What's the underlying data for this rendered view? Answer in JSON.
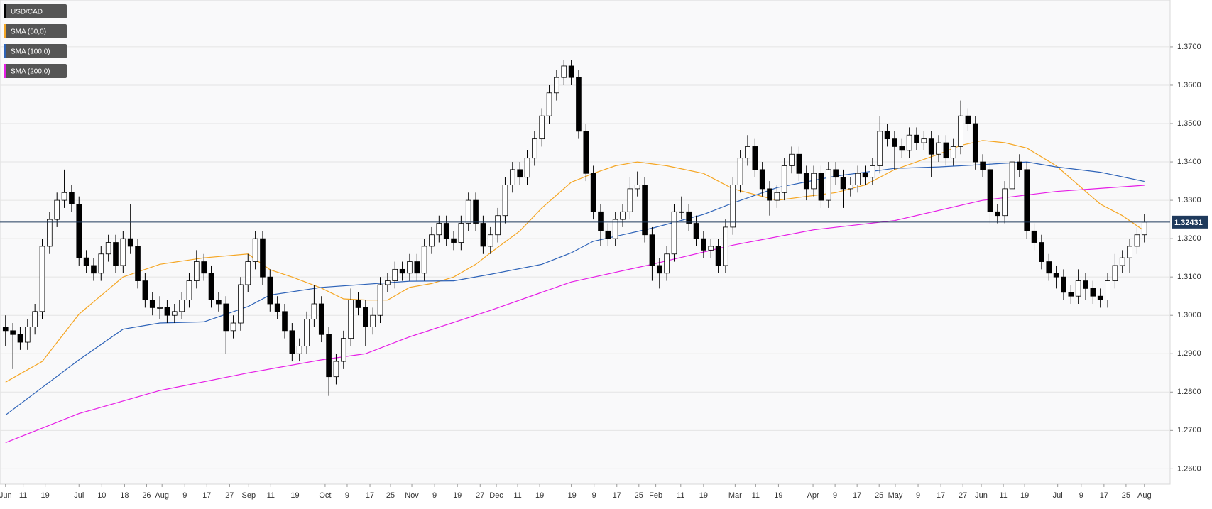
{
  "chart_data": {
    "type": "candlestick",
    "name": "USD/CAD",
    "color": "#000000",
    "ohlc": [
      [
        1.297,
        1.3,
        1.292,
        1.296
      ],
      [
        1.296,
        1.298,
        1.286,
        1.295
      ],
      [
        1.295,
        1.297,
        1.291,
        1.293
      ],
      [
        1.293,
        1.299,
        1.291,
        1.297
      ],
      [
        1.297,
        1.303,
        1.295,
        1.301
      ],
      [
        1.301,
        1.32,
        1.299,
        1.318
      ],
      [
        1.318,
        1.327,
        1.316,
        1.325
      ],
      [
        1.325,
        1.332,
        1.323,
        1.33
      ],
      [
        1.33,
        1.338,
        1.328,
        1.332
      ],
      [
        1.332,
        1.334,
        1.327,
        1.329
      ],
      [
        1.329,
        1.331,
        1.313,
        1.315
      ],
      [
        1.315,
        1.317,
        1.311,
        1.313
      ],
      [
        1.313,
        1.315,
        1.309,
        1.311
      ],
      [
        1.311,
        1.318,
        1.309,
        1.316
      ],
      [
        1.316,
        1.321,
        1.314,
        1.319
      ],
      [
        1.319,
        1.321,
        1.311,
        1.313
      ],
      [
        1.313,
        1.322,
        1.311,
        1.32
      ],
      [
        1.32,
        1.329,
        1.316,
        1.318
      ],
      [
        1.318,
        1.32,
        1.307,
        1.309
      ],
      [
        1.309,
        1.311,
        1.302,
        1.304
      ],
      [
        1.304,
        1.306,
        1.3,
        1.302
      ],
      [
        1.302,
        1.305,
        1.299,
        1.302
      ],
      [
        1.302,
        1.304,
        1.298,
        1.3
      ],
      [
        1.3,
        1.303,
        1.298,
        1.301
      ],
      [
        1.301,
        1.306,
        1.299,
        1.304
      ],
      [
        1.304,
        1.311,
        1.302,
        1.309
      ],
      [
        1.309,
        1.317,
        1.307,
        1.314
      ],
      [
        1.314,
        1.316,
        1.309,
        1.311
      ],
      [
        1.311,
        1.313,
        1.302,
        1.304
      ],
      [
        1.304,
        1.306,
        1.301,
        1.303
      ],
      [
        1.303,
        1.305,
        1.29,
        1.296
      ],
      [
        1.296,
        1.3,
        1.294,
        1.298
      ],
      [
        1.298,
        1.31,
        1.296,
        1.308
      ],
      [
        1.308,
        1.316,
        1.306,
        1.314
      ],
      [
        1.314,
        1.322,
        1.312,
        1.32
      ],
      [
        1.32,
        1.322,
        1.308,
        1.31
      ],
      [
        1.31,
        1.312,
        1.301,
        1.303
      ],
      [
        1.303,
        1.305,
        1.299,
        1.301
      ],
      [
        1.301,
        1.303,
        1.294,
        1.296
      ],
      [
        1.296,
        1.298,
        1.288,
        1.29
      ],
      [
        1.29,
        1.294,
        1.288,
        1.292
      ],
      [
        1.292,
        1.301,
        1.29,
        1.299
      ],
      [
        1.299,
        1.308,
        1.297,
        1.303
      ],
      [
        1.303,
        1.305,
        1.293,
        1.295
      ],
      [
        1.295,
        1.297,
        1.279,
        1.284
      ],
      [
        1.284,
        1.29,
        1.282,
        1.288
      ],
      [
        1.288,
        1.296,
        1.286,
        1.294
      ],
      [
        1.294,
        1.307,
        1.292,
        1.304
      ],
      [
        1.304,
        1.306,
        1.3,
        1.302
      ],
      [
        1.302,
        1.304,
        1.292,
        1.297
      ],
      [
        1.297,
        1.302,
        1.295,
        1.3
      ],
      [
        1.3,
        1.31,
        1.298,
        1.308
      ],
      [
        1.308,
        1.311,
        1.306,
        1.309
      ],
      [
        1.309,
        1.314,
        1.307,
        1.312
      ],
      [
        1.312,
        1.314,
        1.309,
        1.311
      ],
      [
        1.311,
        1.316,
        1.309,
        1.314
      ],
      [
        1.314,
        1.316,
        1.309,
        1.311
      ],
      [
        1.311,
        1.32,
        1.309,
        1.318
      ],
      [
        1.318,
        1.323,
        1.316,
        1.321
      ],
      [
        1.321,
        1.326,
        1.319,
        1.324
      ],
      [
        1.324,
        1.326,
        1.318,
        1.32
      ],
      [
        1.32,
        1.322,
        1.317,
        1.319
      ],
      [
        1.319,
        1.326,
        1.317,
        1.324
      ],
      [
        1.324,
        1.332,
        1.322,
        1.33
      ],
      [
        1.33,
        1.332,
        1.322,
        1.324
      ],
      [
        1.324,
        1.326,
        1.316,
        1.318
      ],
      [
        1.318,
        1.323,
        1.316,
        1.321
      ],
      [
        1.321,
        1.328,
        1.319,
        1.326
      ],
      [
        1.326,
        1.336,
        1.324,
        1.334
      ],
      [
        1.334,
        1.34,
        1.332,
        1.338
      ],
      [
        1.338,
        1.34,
        1.334,
        1.336
      ],
      [
        1.336,
        1.343,
        1.334,
        1.341
      ],
      [
        1.341,
        1.348,
        1.339,
        1.346
      ],
      [
        1.346,
        1.354,
        1.344,
        1.352
      ],
      [
        1.352,
        1.36,
        1.35,
        1.358
      ],
      [
        1.358,
        1.364,
        1.356,
        1.362
      ],
      [
        1.362,
        1.3665,
        1.36,
        1.365
      ],
      [
        1.365,
        1.3665,
        1.36,
        1.362
      ],
      [
        1.362,
        1.364,
        1.346,
        1.348
      ],
      [
        1.348,
        1.35,
        1.335,
        1.337
      ],
      [
        1.337,
        1.339,
        1.325,
        1.327
      ],
      [
        1.327,
        1.329,
        1.318,
        1.322
      ],
      [
        1.322,
        1.324,
        1.318,
        1.32
      ],
      [
        1.32,
        1.327,
        1.318,
        1.325
      ],
      [
        1.325,
        1.329,
        1.323,
        1.327
      ],
      [
        1.327,
        1.336,
        1.325,
        1.333
      ],
      [
        1.333,
        1.3375,
        1.331,
        1.334
      ],
      [
        1.334,
        1.336,
        1.319,
        1.321
      ],
      [
        1.321,
        1.323,
        1.309,
        1.313
      ],
      [
        1.313,
        1.315,
        1.307,
        1.311
      ],
      [
        1.311,
        1.318,
        1.309,
        1.316
      ],
      [
        1.316,
        1.329,
        1.314,
        1.327
      ],
      [
        1.327,
        1.331,
        1.325,
        1.327
      ],
      [
        1.327,
        1.329,
        1.322,
        1.324
      ],
      [
        1.324,
        1.326,
        1.318,
        1.32
      ],
      [
        1.32,
        1.322,
        1.315,
        1.317
      ],
      [
        1.317,
        1.32,
        1.315,
        1.318
      ],
      [
        1.318,
        1.32,
        1.311,
        1.313
      ],
      [
        1.313,
        1.325,
        1.311,
        1.323
      ],
      [
        1.323,
        1.336,
        1.321,
        1.334
      ],
      [
        1.334,
        1.343,
        1.332,
        1.341
      ],
      [
        1.341,
        1.347,
        1.339,
        1.344
      ],
      [
        1.344,
        1.346,
        1.336,
        1.338
      ],
      [
        1.338,
        1.34,
        1.331,
        1.333
      ],
      [
        1.333,
        1.335,
        1.326,
        1.33
      ],
      [
        1.33,
        1.334,
        1.328,
        1.332
      ],
      [
        1.332,
        1.341,
        1.33,
        1.339
      ],
      [
        1.339,
        1.344,
        1.337,
        1.342
      ],
      [
        1.342,
        1.344,
        1.335,
        1.337
      ],
      [
        1.337,
        1.339,
        1.33,
        1.333
      ],
      [
        1.333,
        1.339,
        1.331,
        1.337
      ],
      [
        1.337,
        1.339,
        1.328,
        1.33
      ],
      [
        1.33,
        1.34,
        1.328,
        1.338
      ],
      [
        1.338,
        1.34,
        1.334,
        1.336
      ],
      [
        1.336,
        1.338,
        1.328,
        1.333
      ],
      [
        1.333,
        1.336,
        1.331,
        1.334
      ],
      [
        1.334,
        1.339,
        1.332,
        1.337
      ],
      [
        1.337,
        1.339,
        1.334,
        1.336
      ],
      [
        1.336,
        1.341,
        1.334,
        1.339
      ],
      [
        1.339,
        1.352,
        1.337,
        1.348
      ],
      [
        1.348,
        1.35,
        1.344,
        1.346
      ],
      [
        1.346,
        1.348,
        1.338,
        1.344
      ],
      [
        1.344,
        1.346,
        1.341,
        1.343
      ],
      [
        1.343,
        1.349,
        1.341,
        1.347
      ],
      [
        1.347,
        1.349,
        1.343,
        1.345
      ],
      [
        1.345,
        1.348,
        1.343,
        1.346
      ],
      [
        1.346,
        1.348,
        1.336,
        1.342
      ],
      [
        1.342,
        1.347,
        1.34,
        1.345
      ],
      [
        1.345,
        1.347,
        1.339,
        1.341
      ],
      [
        1.341,
        1.346,
        1.339,
        1.344
      ],
      [
        1.344,
        1.356,
        1.342,
        1.352
      ],
      [
        1.352,
        1.354,
        1.348,
        1.35
      ],
      [
        1.35,
        1.352,
        1.338,
        1.34
      ],
      [
        1.34,
        1.342,
        1.336,
        1.338
      ],
      [
        1.338,
        1.34,
        1.324,
        1.327
      ],
      [
        1.327,
        1.329,
        1.324,
        1.326
      ],
      [
        1.326,
        1.335,
        1.324,
        1.333
      ],
      [
        1.333,
        1.343,
        1.331,
        1.34
      ],
      [
        1.34,
        1.342,
        1.336,
        1.338
      ],
      [
        1.338,
        1.34,
        1.32,
        1.322
      ],
      [
        1.322,
        1.324,
        1.317,
        1.319
      ],
      [
        1.319,
        1.321,
        1.312,
        1.314
      ],
      [
        1.314,
        1.316,
        1.309,
        1.311
      ],
      [
        1.311,
        1.313,
        1.307,
        1.31
      ],
      [
        1.31,
        1.312,
        1.304,
        1.306
      ],
      [
        1.306,
        1.308,
        1.303,
        1.305
      ],
      [
        1.305,
        1.312,
        1.303,
        1.309
      ],
      [
        1.309,
        1.311,
        1.304,
        1.307
      ],
      [
        1.307,
        1.309,
        1.303,
        1.305
      ],
      [
        1.305,
        1.307,
        1.302,
        1.304
      ],
      [
        1.304,
        1.311,
        1.302,
        1.309
      ],
      [
        1.309,
        1.316,
        1.307,
        1.313
      ],
      [
        1.313,
        1.317,
        1.311,
        1.315
      ],
      [
        1.315,
        1.32,
        1.311,
        1.318
      ],
      [
        1.318,
        1.323,
        1.316,
        1.321
      ],
      [
        1.321,
        1.3265,
        1.319,
        1.3243
      ]
    ],
    "overlays": [
      {
        "name": "SMA (50,0)",
        "color": "#f5a623",
        "x": [
          0,
          5,
          10,
          16,
          21,
          27,
          33,
          36,
          39,
          43,
          46,
          49,
          52,
          55,
          58,
          61,
          64,
          66,
          70,
          73,
          77,
          80,
          83,
          86,
          90,
          95,
          99,
          105,
          109,
          113,
          117,
          121,
          124,
          127,
          130,
          133,
          136,
          139,
          143,
          146,
          149,
          152,
          155
        ],
        "values": [
          1.2826,
          1.288,
          1.3003,
          1.31,
          1.3133,
          1.315,
          1.316,
          1.3119,
          1.31,
          1.3071,
          1.3043,
          1.304,
          1.304,
          1.3073,
          1.3083,
          1.31,
          1.3133,
          1.3163,
          1.322,
          1.328,
          1.3347,
          1.337,
          1.339,
          1.34,
          1.339,
          1.337,
          1.333,
          1.33,
          1.331,
          1.332,
          1.334,
          1.338,
          1.34,
          1.342,
          1.3443,
          1.3456,
          1.345,
          1.3436,
          1.339,
          1.334,
          1.329,
          1.326,
          1.322
        ]
      },
      {
        "name": "SMA (100,0)",
        "color": "#2e63b8",
        "x": [
          0,
          10,
          16,
          21,
          27,
          33,
          36,
          43,
          55,
          61,
          66,
          73,
          77,
          80,
          88,
          95,
          99,
          105,
          113,
          121,
          127,
          133,
          139,
          143,
          149,
          155
        ],
        "values": [
          1.274,
          1.2884,
          1.2964,
          1.298,
          1.2983,
          1.3023,
          1.3053,
          1.3073,
          1.3089,
          1.309,
          1.3107,
          1.3133,
          1.3163,
          1.3193,
          1.3227,
          1.3263,
          1.3293,
          1.3333,
          1.3363,
          1.3383,
          1.3387,
          1.3393,
          1.34,
          1.3387,
          1.3373,
          1.3349
        ]
      },
      {
        "name": "SMA (200,0)",
        "color": "#e61ee6",
        "x": [
          0,
          10,
          21,
          33,
          43,
          49,
          55,
          66,
          77,
          88,
          99,
          110,
          121,
          133,
          143,
          155
        ],
        "values": [
          1.2668,
          1.2744,
          1.2804,
          1.285,
          1.2884,
          1.29,
          1.2944,
          1.3013,
          1.3087,
          1.3133,
          1.3183,
          1.3223,
          1.3247,
          1.33,
          1.3323,
          1.3339
        ]
      }
    ],
    "last_price": 1.32431,
    "last_color": "#1f3a5c",
    "xlim": [
      -0.75,
      158.5
    ],
    "ylim": [
      1.256,
      1.3822
    ],
    "yticks": [
      {
        "value": 1.26,
        "label": "1.2600"
      },
      {
        "value": 1.27,
        "label": "1.2700"
      },
      {
        "value": 1.28,
        "label": "1.2800"
      },
      {
        "value": 1.29,
        "label": "1.2900"
      },
      {
        "value": 1.3,
        "label": "1.3000"
      },
      {
        "value": 1.31,
        "label": "1.3100"
      },
      {
        "value": 1.32,
        "label": "1.3200"
      },
      {
        "value": 1.33,
        "label": "1.3300"
      },
      {
        "value": 1.34,
        "label": "1.3400"
      },
      {
        "value": 1.35,
        "label": "1.3500"
      },
      {
        "value": 1.36,
        "label": "1.3600"
      },
      {
        "value": 1.37,
        "label": "1.3700"
      }
    ],
    "xticks": [
      {
        "value": 0,
        "label": "Jun"
      },
      {
        "value": 2.4,
        "label": "11"
      },
      {
        "value": 5.4,
        "label": "19"
      },
      {
        "value": 10,
        "label": "Jul"
      },
      {
        "value": 13.1,
        "label": "10"
      },
      {
        "value": 16.2,
        "label": "18"
      },
      {
        "value": 19.2,
        "label": "26"
      },
      {
        "value": 21.3,
        "label": "Aug"
      },
      {
        "value": 24.4,
        "label": "9"
      },
      {
        "value": 27.4,
        "label": "17"
      },
      {
        "value": 30.5,
        "label": "27"
      },
      {
        "value": 33.1,
        "label": "Sep"
      },
      {
        "value": 36.1,
        "label": "11"
      },
      {
        "value": 39.4,
        "label": "19"
      },
      {
        "value": 43.5,
        "label": "Oct"
      },
      {
        "value": 46.5,
        "label": "9"
      },
      {
        "value": 49.6,
        "label": "17"
      },
      {
        "value": 52.4,
        "label": "25"
      },
      {
        "value": 55.3,
        "label": "Nov"
      },
      {
        "value": 58.4,
        "label": "9"
      },
      {
        "value": 61.5,
        "label": "19"
      },
      {
        "value": 64.6,
        "label": "27"
      },
      {
        "value": 66.8,
        "label": "Dec"
      },
      {
        "value": 69.7,
        "label": "11"
      },
      {
        "value": 72.7,
        "label": "19"
      },
      {
        "value": 77,
        "label": "'19"
      },
      {
        "value": 80.1,
        "label": "9"
      },
      {
        "value": 83.2,
        "label": "17"
      },
      {
        "value": 86.2,
        "label": "25"
      },
      {
        "value": 88.5,
        "label": "Feb"
      },
      {
        "value": 91.9,
        "label": "11"
      },
      {
        "value": 95,
        "label": "19"
      },
      {
        "value": 99.3,
        "label": "Mar"
      },
      {
        "value": 102.1,
        "label": "11"
      },
      {
        "value": 105.2,
        "label": "19"
      },
      {
        "value": 109.9,
        "label": "Apr"
      },
      {
        "value": 112.9,
        "label": "9"
      },
      {
        "value": 115.9,
        "label": "17"
      },
      {
        "value": 118.9,
        "label": "25"
      },
      {
        "value": 121.1,
        "label": "May"
      },
      {
        "value": 124.2,
        "label": "9"
      },
      {
        "value": 127.3,
        "label": "17"
      },
      {
        "value": 130.3,
        "label": "27"
      },
      {
        "value": 132.8,
        "label": "Jun"
      },
      {
        "value": 135.8,
        "label": "11"
      },
      {
        "value": 138.7,
        "label": "19"
      },
      {
        "value": 143.2,
        "label": "Jul"
      },
      {
        "value": 146.4,
        "label": "9"
      },
      {
        "value": 149.5,
        "label": "17"
      },
      {
        "value": 152.5,
        "label": "25"
      },
      {
        "value": 155,
        "label": "Aug"
      }
    ],
    "grid": true
  }
}
